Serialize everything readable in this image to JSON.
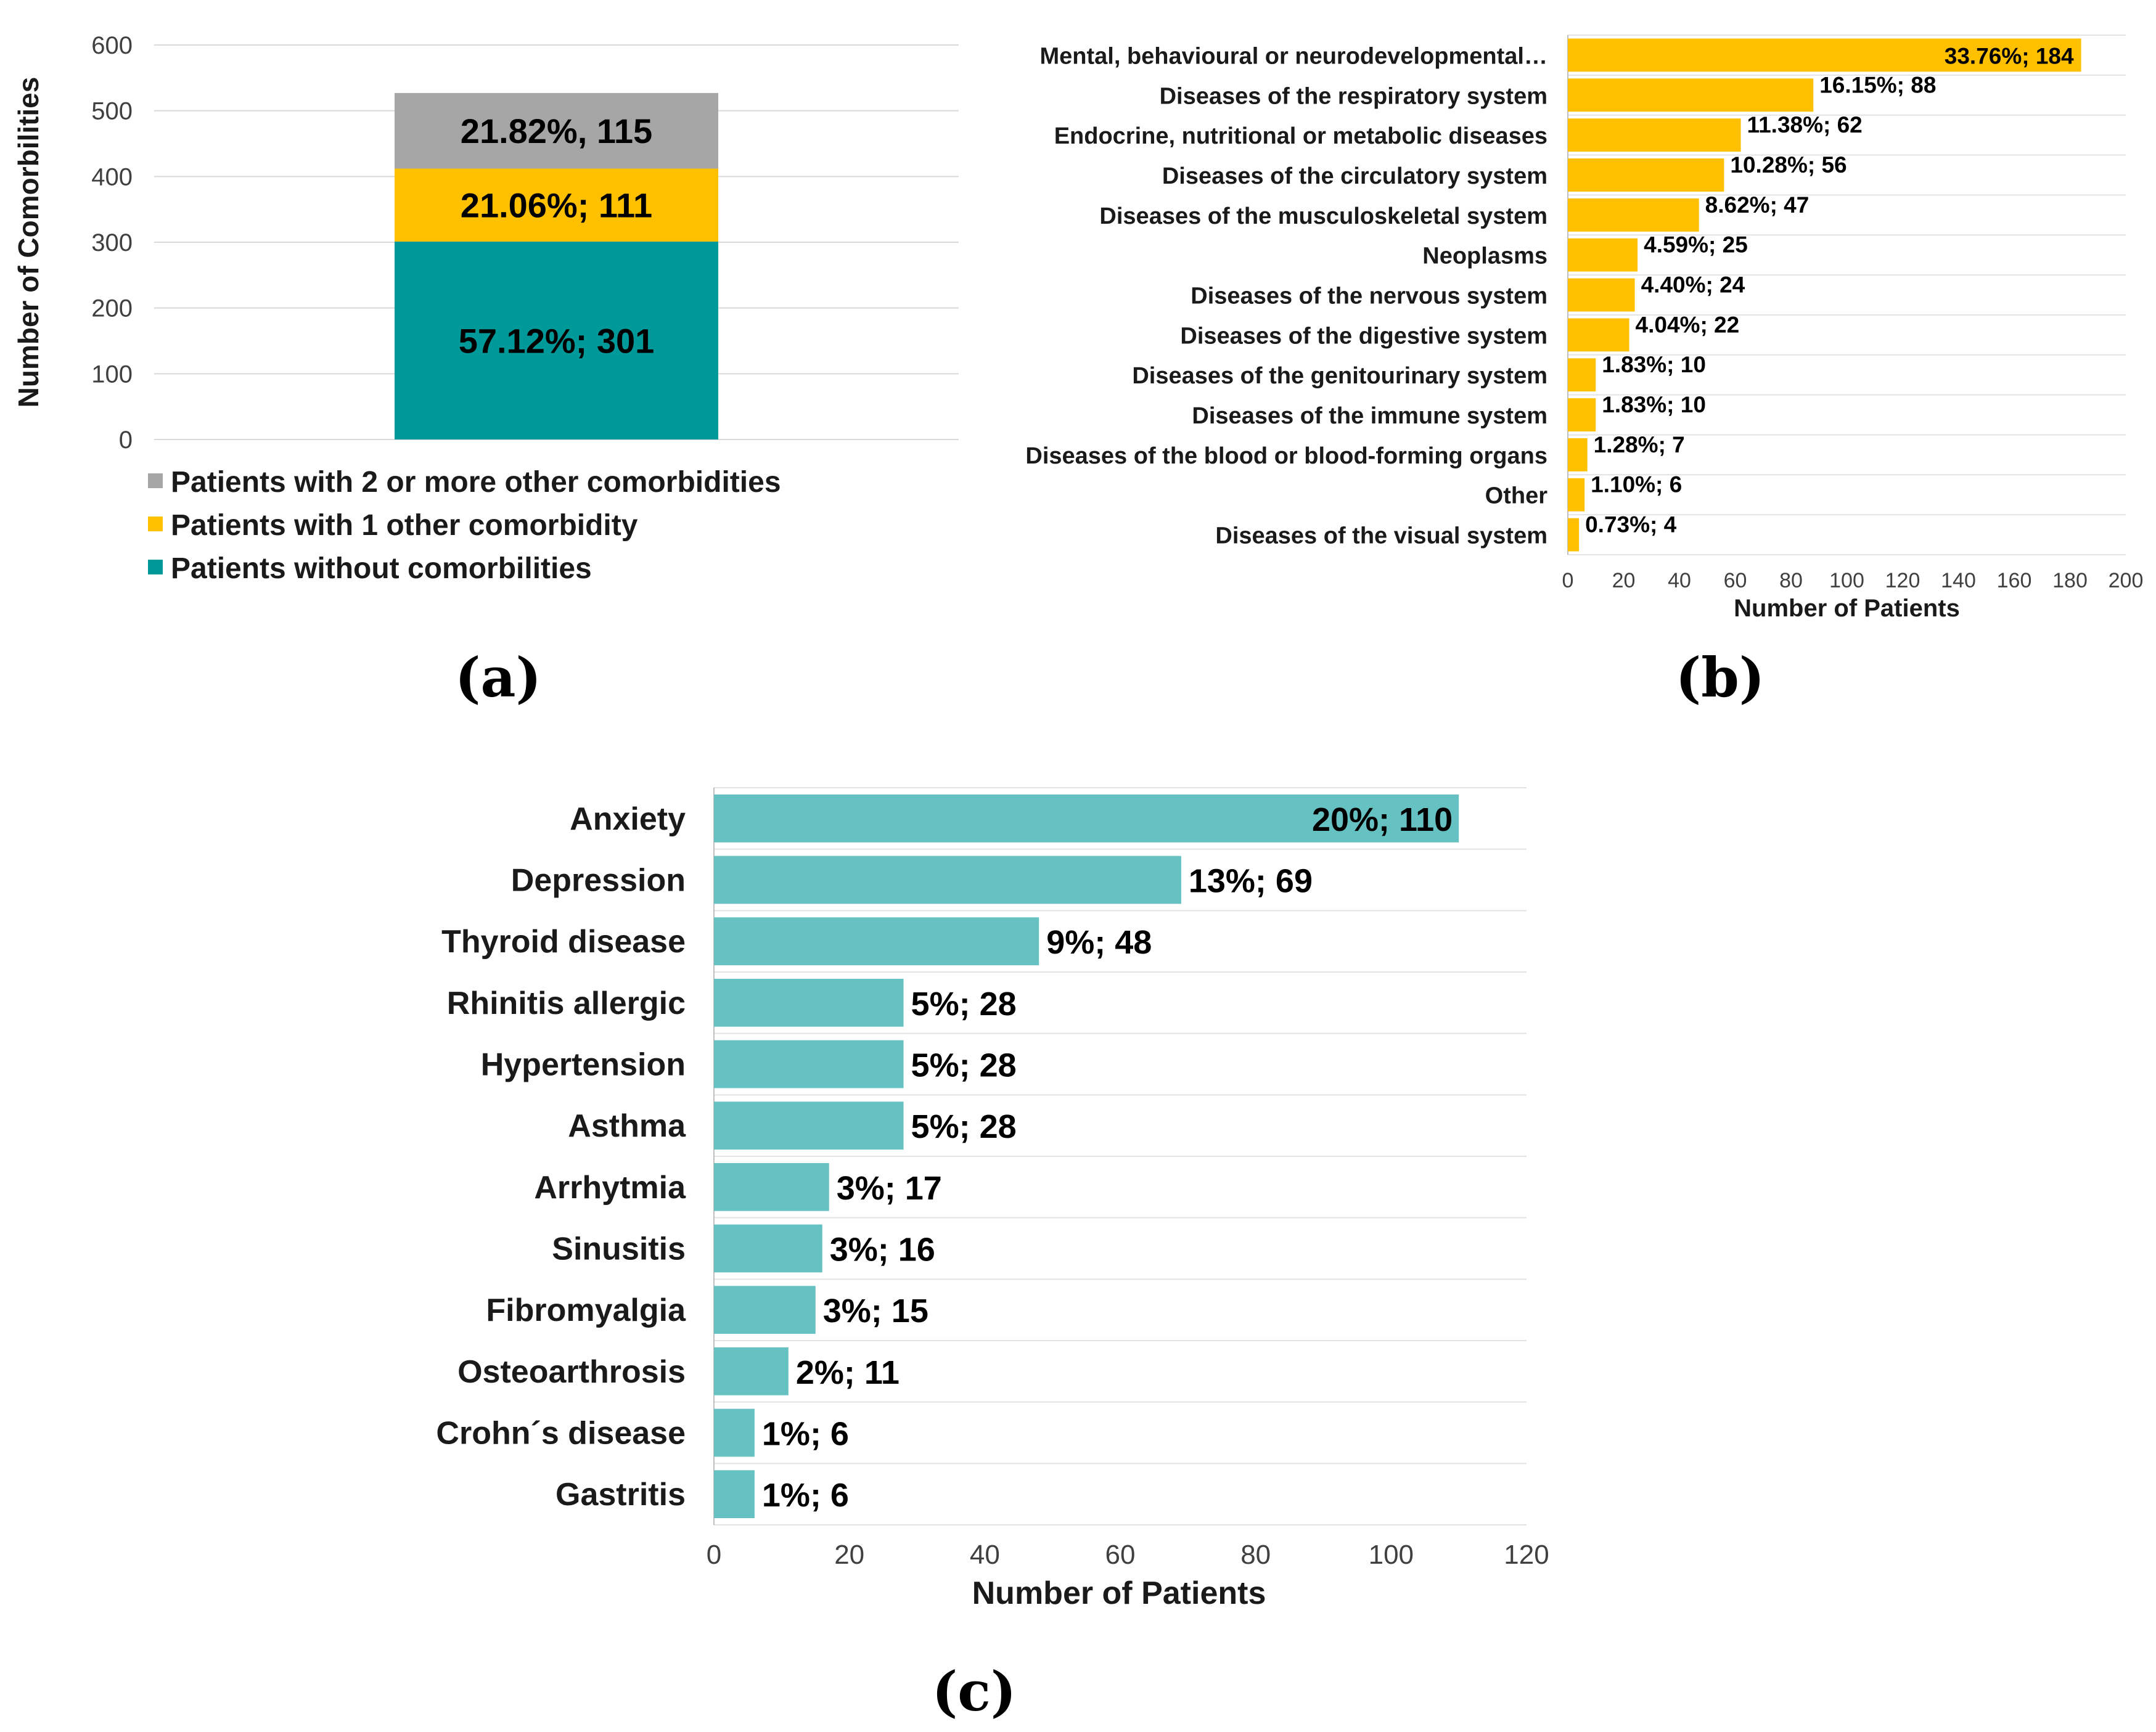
{
  "panels": [
    {
      "id": "a",
      "label": "(a)"
    },
    {
      "id": "b",
      "label": "(b)"
    },
    {
      "id": "c",
      "label": "(c)"
    }
  ],
  "chart_data": [
    {
      "id": "a",
      "type": "bar",
      "stacked": true,
      "ylabel": "Number of Comorbilities",
      "xlabel": "",
      "ylim": [
        0,
        600
      ],
      "yticks": [
        0,
        100,
        200,
        300,
        400,
        500,
        600
      ],
      "grid": true,
      "legend_position": "bottom-left",
      "series": [
        {
          "name": "Patients without comorbilities",
          "value": 301,
          "label": "57.12%; 301",
          "color": "#009999"
        },
        {
          "name": "Patients with 1 other comorbidity",
          "value": 111,
          "label": "21.06%; 111",
          "color": "#FFC000"
        },
        {
          "name": "Patients with 2 or more other comorbidities",
          "value": 115,
          "label": "21.82%, 115",
          "color": "#A6A6A6"
        }
      ],
      "legend_order": [
        2,
        1,
        0
      ]
    },
    {
      "id": "b",
      "type": "bar",
      "orientation": "horizontal",
      "xlabel": "Number of Patients",
      "xlim": [
        0,
        200
      ],
      "xticks": [
        0,
        20,
        40,
        60,
        80,
        100,
        120,
        140,
        160,
        180,
        200
      ],
      "grid": true,
      "color": "#FFC000",
      "categories": [
        "Mental, behavioural or neurodevelopmental…",
        "Diseases of the respiratory system",
        "Endocrine, nutritional or metabolic diseases",
        "Diseases of the circulatory system",
        "Diseases of the musculoskeletal system",
        "Neoplasms",
        "Diseases of the nervous system",
        "Diseases of the digestive system",
        "Diseases of the genitourinary system",
        "Diseases of the immune system",
        "Diseases of the blood or blood-forming organs",
        "Other",
        "Diseases of the visual system"
      ],
      "values": [
        184,
        88,
        62,
        56,
        47,
        25,
        24,
        22,
        10,
        10,
        7,
        6,
        4
      ],
      "labels": [
        "33.76%; 184",
        "16.15%; 88",
        "11.38%; 62",
        "10.28%; 56",
        "8.62%; 47",
        "4.59%; 25",
        "4.40%; 24",
        "4.04%; 22",
        "1.83%; 10",
        "1.83%; 10",
        "1.28%; 7",
        "1.10%; 6",
        "0.73%; 4"
      ]
    },
    {
      "id": "c",
      "type": "bar",
      "orientation": "horizontal",
      "xlabel": "Number of Patients",
      "xlim": [
        0,
        120
      ],
      "xticks": [
        0,
        20,
        40,
        60,
        80,
        100,
        120
      ],
      "grid": true,
      "color": "#66C2C2",
      "categories": [
        "Anxiety",
        "Depression",
        "Thyroid disease",
        "Rhinitis allergic",
        "Hypertension",
        "Asthma",
        "Arrhytmia",
        "Sinusitis",
        "Fibromyalgia",
        "Osteoarthrosis",
        "Crohn´s disease",
        "Gastritis"
      ],
      "values": [
        110,
        69,
        48,
        28,
        28,
        28,
        17,
        16,
        15,
        11,
        6,
        6
      ],
      "labels": [
        "20%; 110",
        "13%; 69",
        "9%; 48",
        "5%; 28",
        "5%; 28",
        "5%; 28",
        "3%; 17",
        "3%; 16",
        "3%; 15",
        "2%; 11",
        "1%; 6",
        "1%; 6"
      ]
    }
  ]
}
